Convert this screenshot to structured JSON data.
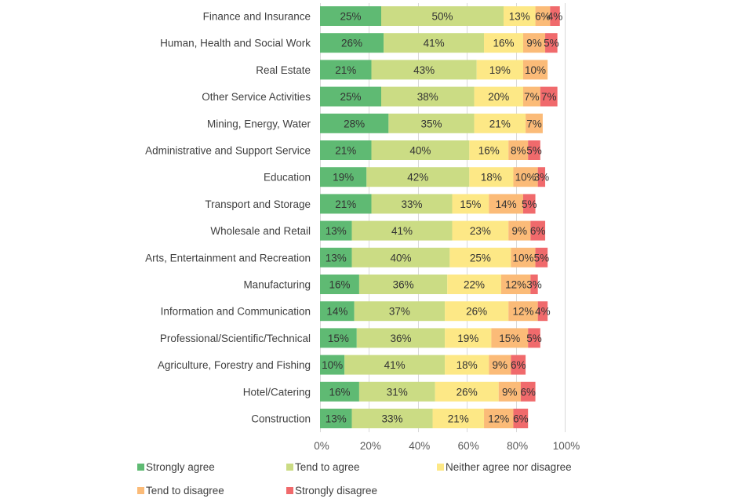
{
  "chart_data": {
    "type": "bar",
    "orientation": "horizontal",
    "stacked": true,
    "title": "",
    "xlabel": "",
    "ylabel": "",
    "xlim": [
      0,
      100
    ],
    "x_ticks": [
      "0%",
      "20%",
      "40%",
      "60%",
      "80%",
      "100%"
    ],
    "x_tick_values": [
      0,
      20,
      40,
      60,
      80,
      100
    ],
    "grid": "vertical",
    "legend_position": "bottom",
    "categories": [
      "Finance and Insurance",
      "Human, Health and Social Work",
      "Real Estate",
      "Other Service Activities",
      "Mining, Energy, Water",
      "Administrative and Support Service",
      "Education",
      "Transport and Storage",
      "Wholesale and Retail",
      "Arts, Entertainment and Recreation",
      "Manufacturing",
      "Information and Communication",
      "Professional/Scientific/Technical",
      "Agriculture, Forestry and Fishing",
      "Hotel/Catering",
      "Construction"
    ],
    "series": [
      {
        "name": "Strongly agree",
        "color": "#5fba73",
        "values": [
          25,
          26,
          21,
          25,
          28,
          21,
          19,
          21,
          13,
          13,
          16,
          14,
          15,
          10,
          16,
          13
        ]
      },
      {
        "name": "Tend to agree",
        "color": "#cbdc84",
        "values": [
          50,
          41,
          43,
          38,
          35,
          40,
          42,
          33,
          41,
          40,
          36,
          37,
          36,
          41,
          31,
          33
        ]
      },
      {
        "name": "Neither agree nor disagree",
        "color": "#fde886",
        "values": [
          13,
          16,
          19,
          20,
          21,
          16,
          18,
          15,
          23,
          25,
          22,
          26,
          19,
          18,
          26,
          21
        ]
      },
      {
        "name": "Tend to disagree",
        "color": "#fbbb78",
        "values": [
          6,
          9,
          10,
          7,
          7,
          8,
          10,
          14,
          9,
          10,
          12,
          12,
          15,
          9,
          9,
          12
        ]
      },
      {
        "name": "Strongly disagree",
        "color": "#f06a6c",
        "values": [
          4,
          5,
          null,
          7,
          null,
          5,
          3,
          5,
          6,
          5,
          3,
          4,
          5,
          6,
          6,
          6
        ]
      }
    ],
    "label_suffix": "%"
  }
}
